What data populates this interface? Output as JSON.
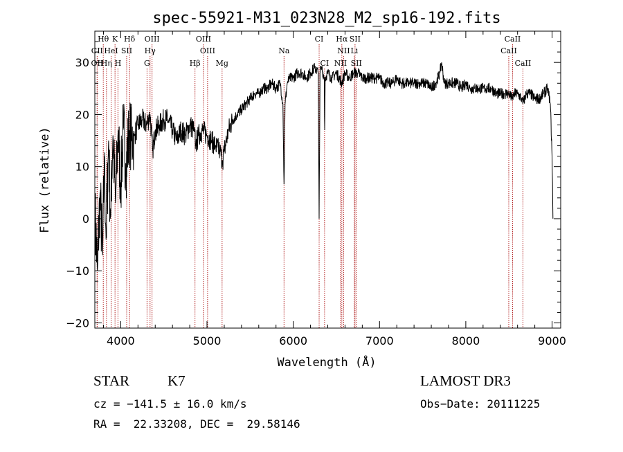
{
  "chart_data": {
    "type": "line",
    "title": "spec-55921-M31_023N28_M2_sp16-192.fits",
    "xlabel": "Wavelength (Å)",
    "ylabel": "Flux (relative)",
    "xlim": [
      3700,
      9100
    ],
    "ylim": [
      -21,
      36
    ],
    "xticks": [
      4000,
      5000,
      6000,
      7000,
      8000,
      9000
    ],
    "yticks": [
      -20,
      -10,
      0,
      10,
      20,
      30
    ],
    "x_minor_step": 200,
    "y_minor_step": 2,
    "grid": false,
    "series": [
      {
        "name": "flux",
        "points": [
          [
            3700,
            2
          ],
          [
            3730,
            -10
          ],
          [
            3760,
            5
          ],
          [
            3790,
            -7
          ],
          [
            3810,
            12
          ],
          [
            3830,
            -4
          ],
          [
            3860,
            15
          ],
          [
            3880,
            0
          ],
          [
            3910,
            16
          ],
          [
            3940,
            3
          ],
          [
            3970,
            17
          ],
          [
            4000,
            6
          ],
          [
            4030,
            18
          ],
          [
            4060,
            10
          ],
          [
            4100,
            17
          ],
          [
            4130,
            15
          ],
          [
            4160,
            16
          ],
          [
            4200,
            18
          ],
          [
            4250,
            19
          ],
          [
            4300,
            18
          ],
          [
            4340,
            20
          ],
          [
            4370,
            13
          ],
          [
            4400,
            17
          ],
          [
            4450,
            18
          ],
          [
            4500,
            19
          ],
          [
            4550,
            19
          ],
          [
            4600,
            17
          ],
          [
            4650,
            15
          ],
          [
            4700,
            17
          ],
          [
            4750,
            16
          ],
          [
            4800,
            18
          ],
          [
            4850,
            17
          ],
          [
            4870,
            14
          ],
          [
            4900,
            16
          ],
          [
            4950,
            17
          ],
          [
            5000,
            16
          ],
          [
            5050,
            15
          ],
          [
            5100,
            14
          ],
          [
            5150,
            13
          ],
          [
            5180,
            11
          ],
          [
            5200,
            13
          ],
          [
            5250,
            17
          ],
          [
            5300,
            19
          ],
          [
            5350,
            20
          ],
          [
            5400,
            21
          ],
          [
            5450,
            22
          ],
          [
            5500,
            23
          ],
          [
            5550,
            24
          ],
          [
            5600,
            24
          ],
          [
            5650,
            25
          ],
          [
            5700,
            25
          ],
          [
            5750,
            26
          ],
          [
            5800,
            25
          ],
          [
            5850,
            26
          ],
          [
            5880,
            22
          ],
          [
            5893,
            6
          ],
          [
            5905,
            22
          ],
          [
            5930,
            26
          ],
          [
            5960,
            27
          ],
          [
            6000,
            27
          ],
          [
            6050,
            28
          ],
          [
            6100,
            28
          ],
          [
            6150,
            27
          ],
          [
            6200,
            28
          ],
          [
            6250,
            29
          ],
          [
            6290,
            28
          ],
          [
            6300,
            0
          ],
          [
            6310,
            28
          ],
          [
            6330,
            29
          ],
          [
            6360,
            27
          ],
          [
            6364,
            15
          ],
          [
            6370,
            27
          ],
          [
            6400,
            28
          ],
          [
            6450,
            27
          ],
          [
            6500,
            28
          ],
          [
            6563,
            26
          ],
          [
            6600,
            28
          ],
          [
            6650,
            27
          ],
          [
            6700,
            28
          ],
          [
            6750,
            28
          ],
          [
            6800,
            27
          ],
          [
            6850,
            27
          ],
          [
            6900,
            27
          ],
          [
            6950,
            27
          ],
          [
            7000,
            27
          ],
          [
            7050,
            26
          ],
          [
            7100,
            26
          ],
          [
            7150,
            26
          ],
          [
            7200,
            27
          ],
          [
            7250,
            26
          ],
          [
            7300,
            26
          ],
          [
            7350,
            26
          ],
          [
            7400,
            26
          ],
          [
            7450,
            26
          ],
          [
            7500,
            26
          ],
          [
            7550,
            26
          ],
          [
            7600,
            25
          ],
          [
            7650,
            26
          ],
          [
            7700,
            28
          ],
          [
            7720,
            30
          ],
          [
            7750,
            26
          ],
          [
            7800,
            26
          ],
          [
            7850,
            26
          ],
          [
            7900,
            26
          ],
          [
            7950,
            25
          ],
          [
            8000,
            26
          ],
          [
            8050,
            25
          ],
          [
            8100,
            25
          ],
          [
            8150,
            25
          ],
          [
            8200,
            25
          ],
          [
            8250,
            25
          ],
          [
            8300,
            25
          ],
          [
            8350,
            24
          ],
          [
            8400,
            24
          ],
          [
            8450,
            24
          ],
          [
            8500,
            24
          ],
          [
            8540,
            23
          ],
          [
            8560,
            24
          ],
          [
            8600,
            24
          ],
          [
            8650,
            23
          ],
          [
            8662,
            22
          ],
          [
            8700,
            24
          ],
          [
            8750,
            24
          ],
          [
            8800,
            23
          ],
          [
            8850,
            23
          ],
          [
            8900,
            24
          ],
          [
            8950,
            25
          ],
          [
            8980,
            22
          ],
          [
            9000,
            12
          ],
          [
            9010,
            0
          ]
        ]
      }
    ],
    "lines": [
      {
        "label": "Hθ",
        "wavelength": 3798,
        "row": 0
      },
      {
        "label": "K",
        "wavelength": 3934,
        "row": 0
      },
      {
        "label": "Hδ",
        "wavelength": 4102,
        "row": 0
      },
      {
        "label": "OIII",
        "wavelength": 4363,
        "row": 0
      },
      {
        "label": "OIII",
        "wavelength": 4959,
        "row": 0
      },
      {
        "label": "CI",
        "wavelength": 6300,
        "row": 0
      },
      {
        "label": "Hα",
        "wavelength": 6563,
        "row": 0
      },
      {
        "label": "SII",
        "wavelength": 6716,
        "row": 0
      },
      {
        "label": "CaII",
        "wavelength": 8542,
        "row": 0
      },
      {
        "label": "CII",
        "wavelength": 3727,
        "row": 1
      },
      {
        "label": "HeI",
        "wavelength": 3889,
        "row": 1
      },
      {
        "label": "SII",
        "wavelength": 4069,
        "row": 1
      },
      {
        "label": "Hγ",
        "wavelength": 4340,
        "row": 1
      },
      {
        "label": "OIII",
        "wavelength": 5007,
        "row": 1
      },
      {
        "label": "Na",
        "wavelength": 5893,
        "row": 1
      },
      {
        "label": "NII",
        "wavelength": 6584,
        "row": 1
      },
      {
        "label": "Li",
        "wavelength": 6708,
        "row": 1
      },
      {
        "label": "CaII",
        "wavelength": 8498,
        "row": 1
      },
      {
        "label": "OII",
        "wavelength": 3727,
        "row": 2
      },
      {
        "label": "Hη",
        "wavelength": 3835,
        "row": 2
      },
      {
        "label": "H",
        "wavelength": 3968,
        "row": 2
      },
      {
        "label": "G",
        "wavelength": 4305,
        "row": 2
      },
      {
        "label": "Hβ",
        "wavelength": 4861,
        "row": 2
      },
      {
        "label": "Mg",
        "wavelength": 5175,
        "row": 2
      },
      {
        "label": "CI",
        "wavelength": 6363,
        "row": 2
      },
      {
        "label": "NII",
        "wavelength": 6548,
        "row": 2
      },
      {
        "label": "SII",
        "wavelength": 6731,
        "row": 2
      },
      {
        "label": "CaII",
        "wavelength": 8662,
        "row": 2
      }
    ],
    "line_marker_color": "#b22222"
  },
  "info": {
    "object_class": "STAR",
    "subclass": "K7",
    "survey": "LAMOST DR3",
    "velocity": "cz = −141.5 ± 16.0 km/s",
    "obs_date": "Obs−Date: 20111225",
    "coords": "RA =  22.33208, DEC =  29.58146"
  }
}
